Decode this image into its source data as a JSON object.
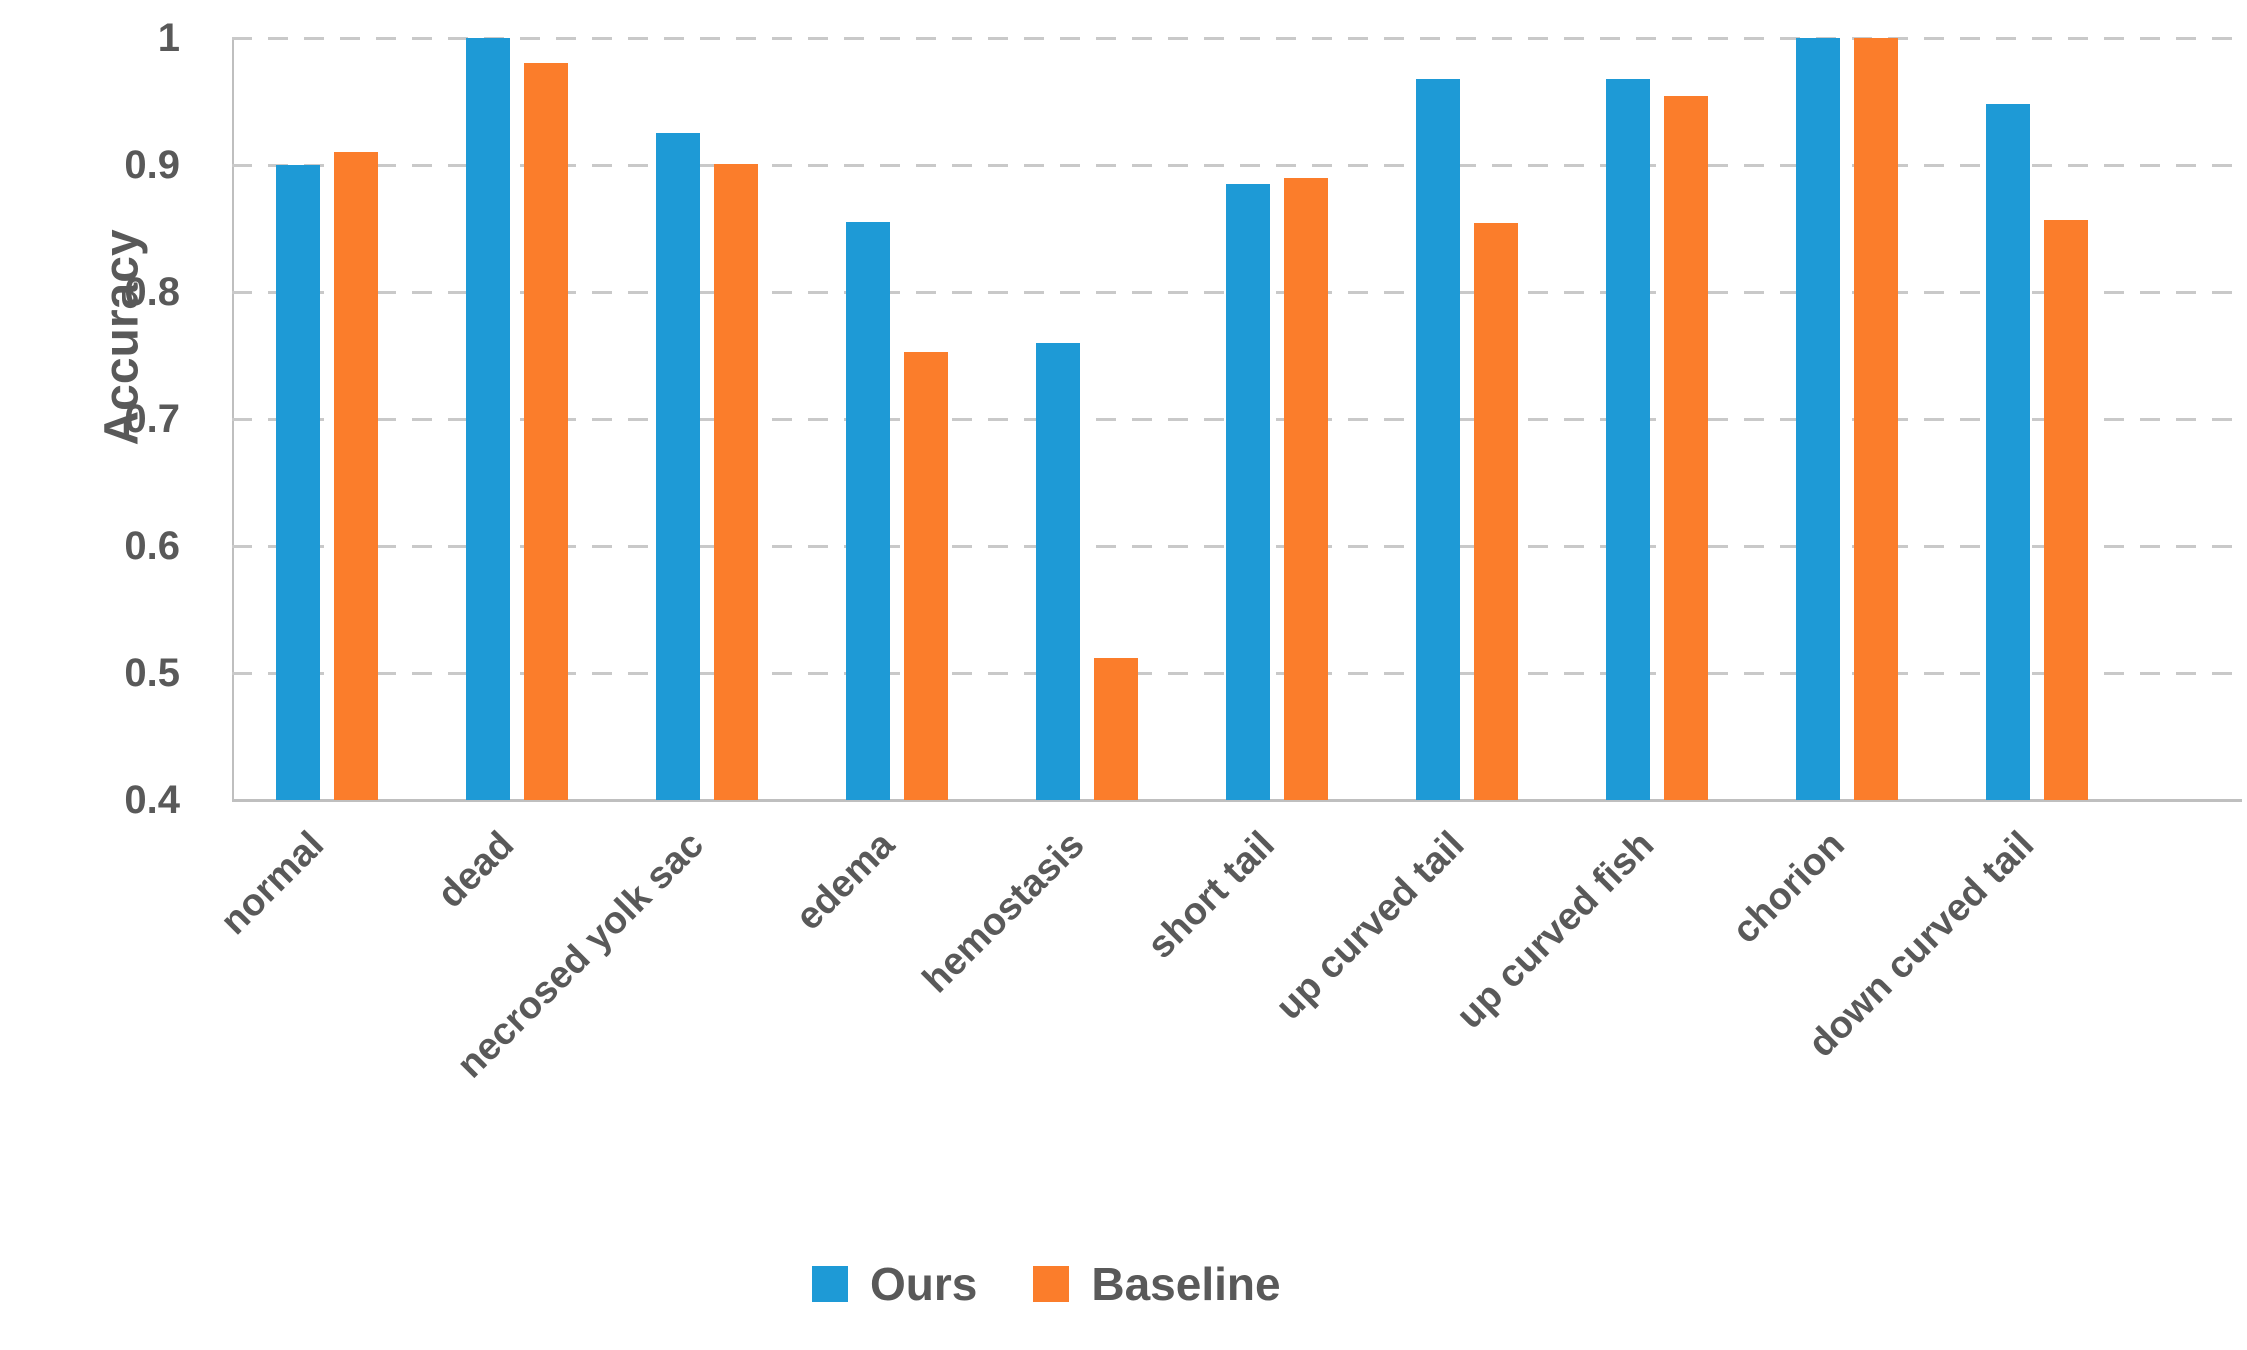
{
  "chart_data": {
    "type": "bar",
    "title": "",
    "xlabel": "",
    "ylabel": "Accuracy",
    "categories": [
      "normal",
      "dead",
      "necrosed yolk sac",
      "edema",
      "hemostasis",
      "short tail",
      "up curved tail",
      "up curved fish",
      "chorion",
      "down curved tail"
    ],
    "series": [
      {
        "name": "Ours",
        "color": "#1E9AD6",
        "values": [
          0.9,
          1.0,
          0.925,
          0.855,
          0.76,
          0.885,
          0.968,
          0.968,
          1.0,
          0.948
        ]
      },
      {
        "name": "Baseline",
        "color": "#FB7D2B",
        "values": [
          0.91,
          0.98,
          0.901,
          0.753,
          0.512,
          0.89,
          0.854,
          0.954,
          1.0,
          0.857
        ]
      }
    ],
    "ylim": [
      0.4,
      1.0
    ],
    "yticks": [
      0.4,
      0.5,
      0.6,
      0.7,
      0.8,
      0.9,
      1
    ],
    "ytick_labels": [
      "0.4",
      "0.5",
      "0.6",
      "0.7",
      "0.8",
      "0.9",
      "1"
    ],
    "grid": "horizontal-dashed",
    "gridline_color": "#c9c9c9",
    "axis_line_color": "#bfbfbf",
    "text_color": "#595959",
    "legend_position": "bottom-center"
  }
}
